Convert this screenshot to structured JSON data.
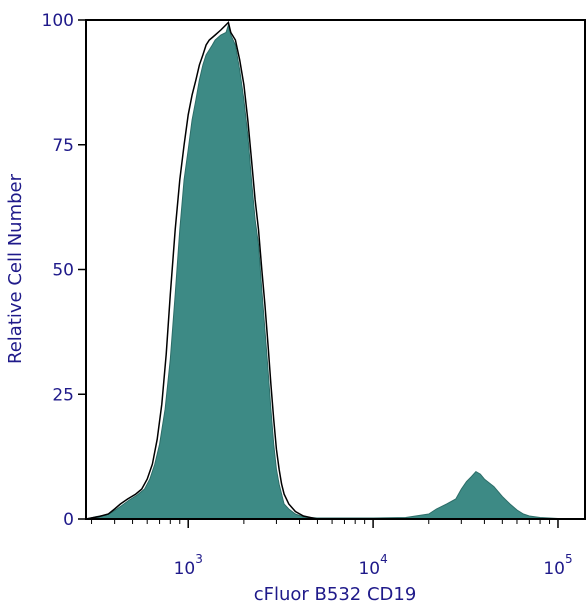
{
  "chart_data": {
    "type": "area",
    "xlabel": "cFluor B532 CD19",
    "ylabel": "Relative Cell Number",
    "x_scale": "log",
    "xlim": [
      280,
      140000
    ],
    "ylim": [
      0,
      100
    ],
    "y_ticks": [
      {
        "value": 0,
        "label": "0"
      },
      {
        "value": 25,
        "label": "25"
      },
      {
        "value": 50,
        "label": "50"
      },
      {
        "value": 75,
        "label": "75"
      },
      {
        "value": 100,
        "label": "100"
      }
    ],
    "x_ticks": [
      {
        "value": 1000,
        "base": "10",
        "exponent": "3"
      },
      {
        "value": 10000,
        "base": "10",
        "exponent": "4"
      },
      {
        "value": 100000,
        "base": "10",
        "exponent": "5"
      }
    ],
    "series": [
      {
        "style": "filled",
        "color": "#3d8a85",
        "points": [
          [
            280,
            0
          ],
          [
            320,
            0.5
          ],
          [
            360,
            0.8
          ],
          [
            390,
            1.4
          ],
          [
            430,
            2.5
          ],
          [
            480,
            3.8
          ],
          [
            530,
            4.8
          ],
          [
            580,
            6.0
          ],
          [
            620,
            8
          ],
          [
            660,
            11
          ],
          [
            700,
            15
          ],
          [
            750,
            22
          ],
          [
            800,
            32
          ],
          [
            850,
            45
          ],
          [
            900,
            58
          ],
          [
            950,
            68
          ],
          [
            1000,
            74
          ],
          [
            1050,
            80
          ],
          [
            1100,
            84
          ],
          [
            1150,
            88
          ],
          [
            1200,
            91
          ],
          [
            1250,
            93
          ],
          [
            1300,
            94
          ],
          [
            1350,
            95
          ],
          [
            1400,
            96
          ],
          [
            1500,
            97
          ],
          [
            1600,
            97.5
          ],
          [
            1650,
            99
          ],
          [
            1700,
            97
          ],
          [
            1800,
            95
          ],
          [
            1900,
            90
          ],
          [
            2000,
            84
          ],
          [
            2100,
            77
          ],
          [
            2200,
            68
          ],
          [
            2300,
            60
          ],
          [
            2400,
            55
          ],
          [
            2500,
            46
          ],
          [
            2600,
            38
          ],
          [
            2700,
            30
          ],
          [
            2800,
            22
          ],
          [
            2900,
            15
          ],
          [
            3000,
            10
          ],
          [
            3100,
            7
          ],
          [
            3200,
            5
          ],
          [
            3300,
            3
          ],
          [
            3500,
            2
          ],
          [
            3800,
            1
          ],
          [
            4200,
            0.4
          ],
          [
            5000,
            0.2
          ],
          [
            10000,
            0.2
          ],
          [
            15000,
            0.3
          ],
          [
            20000,
            1
          ],
          [
            22000,
            2
          ],
          [
            25000,
            3
          ],
          [
            28000,
            4
          ],
          [
            30000,
            6
          ],
          [
            32000,
            7.5
          ],
          [
            34000,
            8.5
          ],
          [
            36000,
            9.5
          ],
          [
            38000,
            9
          ],
          [
            40000,
            8
          ],
          [
            45000,
            6.5
          ],
          [
            50000,
            4.5
          ],
          [
            55000,
            3
          ],
          [
            60000,
            1.8
          ],
          [
            65000,
            1
          ],
          [
            70000,
            0.6
          ],
          [
            80000,
            0.3
          ],
          [
            100000,
            0.1
          ],
          [
            140000,
            0.1
          ]
        ]
      },
      {
        "style": "outline",
        "color": "#000000",
        "points": [
          [
            280,
            0
          ],
          [
            330,
            0.5
          ],
          [
            370,
            1
          ],
          [
            400,
            2
          ],
          [
            430,
            3
          ],
          [
            470,
            4
          ],
          [
            520,
            5
          ],
          [
            560,
            6
          ],
          [
            600,
            8
          ],
          [
            640,
            11
          ],
          [
            680,
            16
          ],
          [
            720,
            23
          ],
          [
            760,
            33
          ],
          [
            800,
            45
          ],
          [
            850,
            58
          ],
          [
            900,
            68
          ],
          [
            950,
            75
          ],
          [
            1000,
            81
          ],
          [
            1050,
            85
          ],
          [
            1100,
            88
          ],
          [
            1150,
            91
          ],
          [
            1200,
            93
          ],
          [
            1250,
            95
          ],
          [
            1300,
            96
          ],
          [
            1350,
            96.5
          ],
          [
            1400,
            97
          ],
          [
            1500,
            98
          ],
          [
            1650,
            99.5
          ],
          [
            1700,
            97.5
          ],
          [
            1800,
            96
          ],
          [
            1900,
            92
          ],
          [
            2000,
            87
          ],
          [
            2100,
            80
          ],
          [
            2200,
            72
          ],
          [
            2300,
            64
          ],
          [
            2400,
            58
          ],
          [
            2500,
            50
          ],
          [
            2600,
            43
          ],
          [
            2700,
            35
          ],
          [
            2800,
            27
          ],
          [
            2900,
            20
          ],
          [
            3000,
            14
          ],
          [
            3100,
            10
          ],
          [
            3200,
            7
          ],
          [
            3300,
            5
          ],
          [
            3500,
            3
          ],
          [
            3800,
            1.5
          ],
          [
            4200,
            0.6
          ],
          [
            4700,
            0.2
          ],
          [
            5000,
            0
          ]
        ]
      }
    ]
  }
}
